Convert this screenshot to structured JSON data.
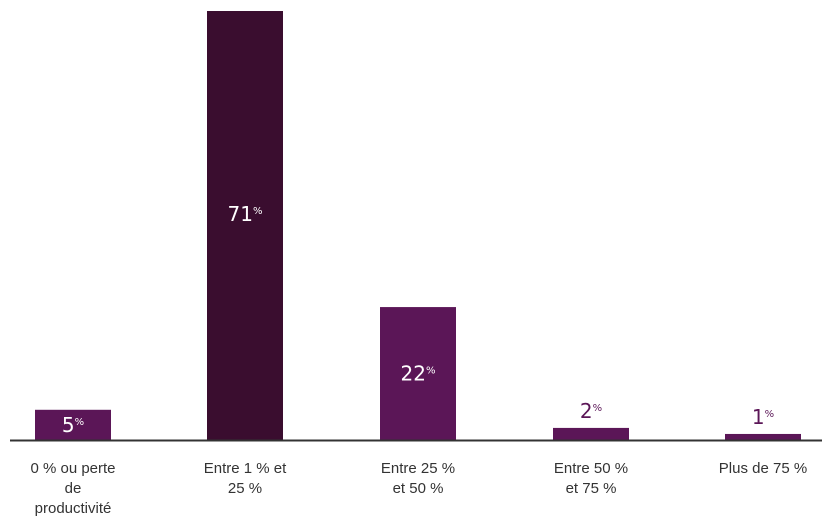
{
  "chart_data": {
    "type": "bar",
    "categories": [
      [
        "0 % ou perte",
        "de",
        "productivité"
      ],
      [
        "Entre 1 % et",
        "25 %"
      ],
      [
        "Entre 25 %",
        "et 50 %"
      ],
      [
        "Entre 50 %",
        "et 75 %"
      ],
      [
        "Plus de 75 %"
      ]
    ],
    "values": [
      5,
      71,
      22,
      2,
      1
    ],
    "data_labels": [
      {
        "num": "5",
        "unit": "%"
      },
      {
        "num": "71",
        "unit": "%"
      },
      {
        "num": "22",
        "unit": "%"
      },
      {
        "num": "2",
        "unit": "%"
      },
      {
        "num": "1",
        "unit": "%"
      }
    ],
    "bar_colors": [
      "#5b1657",
      "#3a0d2f",
      "#5b1657",
      "#5b1657",
      "#5b1657"
    ],
    "label_colors": {
      "inside": "#ffffff",
      "outside": "#5b1657"
    },
    "axis_color": "#333333",
    "ylim": [
      0,
      71
    ],
    "grid": false,
    "legend": "none"
  }
}
